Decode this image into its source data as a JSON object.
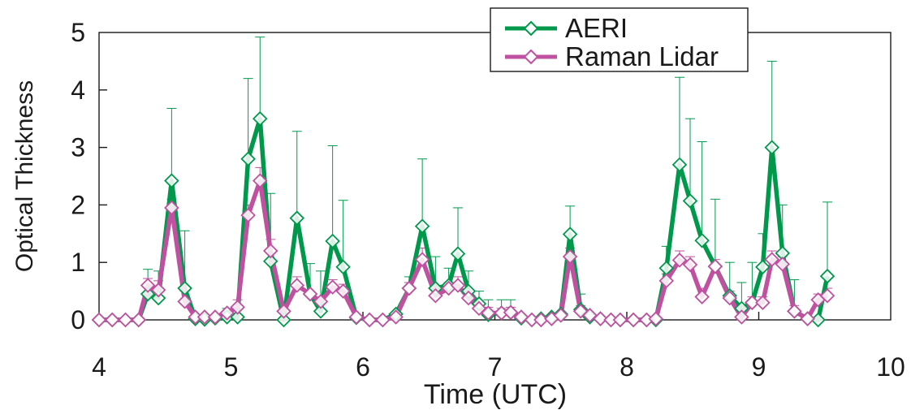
{
  "chart_data": {
    "type": "line",
    "xlabel": "Time (UTC)",
    "ylabel": "Optical Thickness",
    "xlim": [
      4,
      10
    ],
    "ylim": [
      0,
      5
    ],
    "xticks": [
      "4",
      "5",
      "6",
      "7",
      "8",
      "9",
      "10"
    ],
    "yticks": [
      "0",
      "1",
      "2",
      "3",
      "4",
      "5"
    ],
    "grid": false,
    "legend_position": "top-right",
    "legend": [
      "AERI",
      "Raman Lidar"
    ],
    "series": [
      {
        "name": "AERI",
        "color": "#00994c",
        "marker": "open-diamond",
        "x": [
          4.0,
          4.1,
          4.2,
          4.3,
          4.37,
          4.45,
          4.55,
          4.65,
          4.73,
          4.8,
          4.88,
          4.97,
          5.05,
          5.13,
          5.22,
          5.3,
          5.4,
          5.5,
          5.6,
          5.68,
          5.77,
          5.85,
          5.95,
          6.05,
          6.15,
          6.25,
          6.35,
          6.45,
          6.55,
          6.65,
          6.72,
          6.8,
          6.88,
          6.95,
          7.05,
          7.12,
          7.2,
          7.28,
          7.35,
          7.43,
          7.5,
          7.57,
          7.65,
          7.72,
          7.8,
          7.88,
          7.95,
          8.05,
          8.15,
          8.22,
          8.3,
          8.4,
          8.48,
          8.57,
          8.67,
          8.78,
          8.87,
          8.95,
          9.03,
          9.1,
          9.18,
          9.27,
          9.37,
          9.45,
          9.52
        ],
        "y": [
          0,
          0,
          0,
          0,
          0.45,
          0.38,
          2.42,
          0.55,
          0.02,
          0.01,
          0.03,
          0.05,
          0.05,
          2.8,
          3.5,
          1.02,
          0,
          1.77,
          0.45,
          0.15,
          1.37,
          0.92,
          0.04,
          0,
          0,
          0.1,
          0.55,
          1.63,
          0.55,
          0.6,
          1.15,
          0.5,
          0.28,
          0.09,
          0.12,
          0.13,
          0.03,
          0,
          0.02,
          0.05,
          0.1,
          1.49,
          0.18,
          0.05,
          0.02,
          0,
          0,
          0,
          0,
          0,
          0.9,
          2.7,
          2.07,
          1.38,
          0.93,
          0.42,
          0.2,
          0.3,
          0.92,
          3.0,
          1.16,
          0.15,
          0.02,
          0,
          0.76
        ],
        "error_upper": [
          null,
          null,
          null,
          null,
          0.88,
          0.85,
          3.68,
          1.55,
          null,
          null,
          null,
          0.2,
          null,
          4.2,
          4.92,
          2.2,
          null,
          3.28,
          0.98,
          0.85,
          3.03,
          2.08,
          null,
          null,
          null,
          null,
          0.75,
          2.8,
          1.1,
          0.9,
          1.95,
          0.85,
          0.5,
          0.35,
          0.35,
          0.35,
          null,
          null,
          null,
          null,
          null,
          1.98,
          0.45,
          null,
          null,
          null,
          null,
          null,
          null,
          null,
          1.28,
          4.22,
          3.5,
          3.1,
          2.1,
          1.0,
          0.65,
          1.0,
          1.5,
          4.5,
          2.0,
          0.7,
          null,
          null,
          2.05
        ]
      },
      {
        "name": "Raman Lidar",
        "color": "#c050a0",
        "marker": "open-diamond",
        "x": [
          4.0,
          4.1,
          4.2,
          4.3,
          4.37,
          4.45,
          4.55,
          4.65,
          4.73,
          4.8,
          4.88,
          4.97,
          5.05,
          5.13,
          5.22,
          5.3,
          5.4,
          5.5,
          5.6,
          5.68,
          5.77,
          5.85,
          5.95,
          6.05,
          6.15,
          6.25,
          6.35,
          6.45,
          6.55,
          6.65,
          6.72,
          6.8,
          6.88,
          6.95,
          7.05,
          7.12,
          7.2,
          7.28,
          7.35,
          7.43,
          7.5,
          7.57,
          7.65,
          7.72,
          7.8,
          7.88,
          7.95,
          8.05,
          8.15,
          8.22,
          8.3,
          8.4,
          8.48,
          8.57,
          8.67,
          8.78,
          8.87,
          8.95,
          9.03,
          9.1,
          9.18,
          9.27,
          9.37,
          9.45,
          9.52
        ],
        "y": [
          0,
          0,
          0,
          0,
          0.6,
          0.52,
          1.95,
          0.32,
          0.05,
          0.05,
          0.05,
          0.12,
          0.22,
          1.82,
          2.42,
          1.2,
          0.15,
          0.6,
          0.45,
          0.32,
          0.57,
          0.5,
          0.05,
          0,
          0,
          0.05,
          0.55,
          1.05,
          0.42,
          0.55,
          0.6,
          0.38,
          0.2,
          0.12,
          0.12,
          0.13,
          0.05,
          0,
          0,
          0.02,
          0.08,
          1.1,
          0.15,
          0.08,
          0.02,
          0,
          0,
          0,
          0,
          0.02,
          0.68,
          1.04,
          0.96,
          0.4,
          0.93,
          0.38,
          0.05,
          0.3,
          0.3,
          1.05,
          0.97,
          0.15,
          0.02,
          0.35,
          0.42
        ],
        "error_upper": [
          null,
          null,
          null,
          null,
          0.72,
          0.68,
          2.1,
          0.5,
          null,
          null,
          null,
          null,
          0.35,
          2.0,
          2.65,
          1.4,
          null,
          0.75,
          null,
          null,
          0.7,
          0.62,
          null,
          null,
          null,
          null,
          0.65,
          1.25,
          0.52,
          0.65,
          0.75,
          0.5,
          0.3,
          0.22,
          0.2,
          0.22,
          null,
          null,
          null,
          null,
          null,
          1.25,
          0.25,
          null,
          null,
          null,
          null,
          null,
          null,
          null,
          0.8,
          1.2,
          1.1,
          0.55,
          1.05,
          0.5,
          0.15,
          0.4,
          0.4,
          1.2,
          1.1,
          0.25,
          null,
          0.45,
          0.55
        ]
      }
    ]
  }
}
